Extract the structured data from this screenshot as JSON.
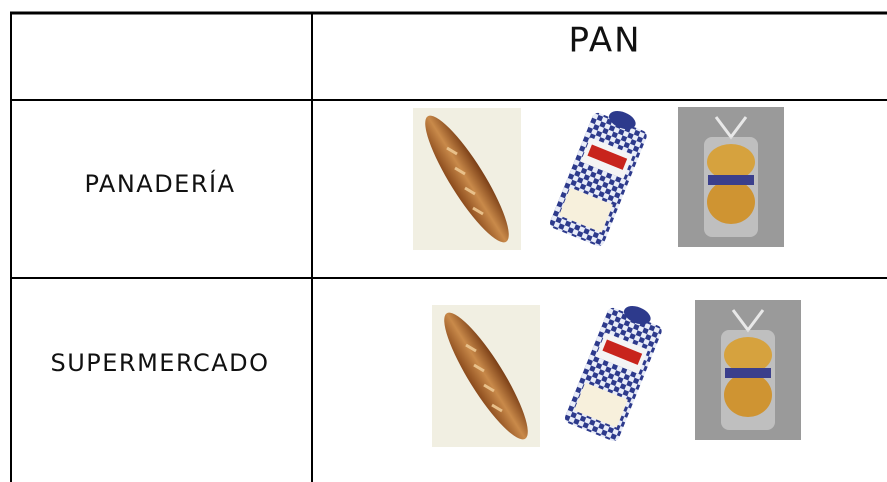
{
  "table": {
    "column_header": "PAN",
    "rows": [
      {
        "label": "PANADERÍA"
      },
      {
        "label": "SUPERMERCADO"
      }
    ]
  }
}
